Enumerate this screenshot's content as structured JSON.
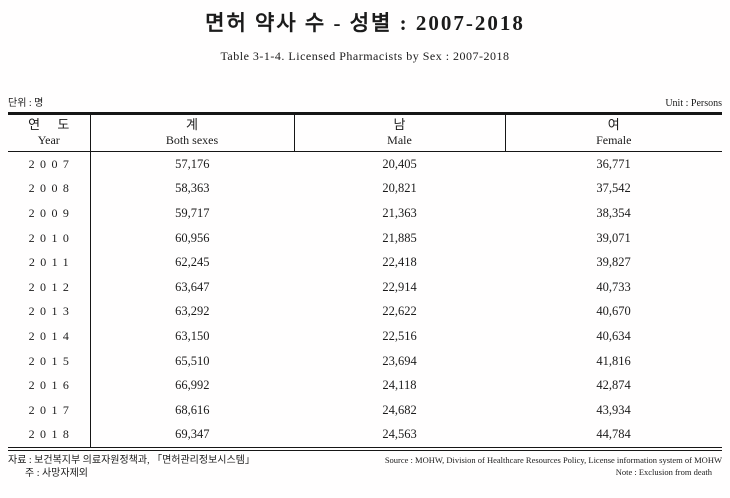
{
  "page": {
    "title_ko": "면허 약사 수 - 성별 : 2007-2018",
    "title_en": "Table 3-1-4. Licensed Pharmacists by Sex : 2007-2018",
    "unit_ko": "단위 : 명",
    "unit_en": "Unit : Persons"
  },
  "table": {
    "columns": [
      {
        "ko": "연 도",
        "en": "Year"
      },
      {
        "ko": "계",
        "en": "Both sexes"
      },
      {
        "ko": "남",
        "en": "Male"
      },
      {
        "ko": "여",
        "en": "Female"
      }
    ],
    "rows": [
      {
        "year": "2007",
        "total": "57,176",
        "male": "20,405",
        "female": "36,771"
      },
      {
        "year": "2008",
        "total": "58,363",
        "male": "20,821",
        "female": "37,542"
      },
      {
        "year": "2009",
        "total": "59,717",
        "male": "21,363",
        "female": "38,354"
      },
      {
        "year": "2010",
        "total": "60,956",
        "male": "21,885",
        "female": "39,071"
      },
      {
        "year": "2011",
        "total": "62,245",
        "male": "22,418",
        "female": "39,827"
      },
      {
        "year": "2012",
        "total": "63,647",
        "male": "22,914",
        "female": "40,733"
      },
      {
        "year": "2013",
        "total": "63,292",
        "male": "22,622",
        "female": "40,670"
      },
      {
        "year": "2014",
        "total": "63,150",
        "male": "22,516",
        "female": "40,634"
      },
      {
        "year": "2015",
        "total": "65,510",
        "male": "23,694",
        "female": "41,816"
      },
      {
        "year": "2016",
        "total": "66,992",
        "male": "24,118",
        "female": "42,874"
      },
      {
        "year": "2017",
        "total": "68,616",
        "male": "24,682",
        "female": "43,934"
      },
      {
        "year": "2018",
        "total": "69,347",
        "male": "24,563",
        "female": "44,784"
      }
    ]
  },
  "footer": {
    "source_ko": "자료 : 보건복지부 의료자원정책과, 「면허관리정보시스템」",
    "note_ko": "주 : 사망자제외",
    "source_en": "Source : MOHW, Division of Healthcare Resources Policy, License information system of MOHW",
    "note_en": "Note : Exclusion from death"
  },
  "chart_data": {
    "type": "table",
    "title": "면허 약사 수 - 성별 : 2007-2018",
    "subtitle": "Table 3-1-4. Licensed Pharmacists by Sex : 2007-2018",
    "unit": "Persons",
    "categories": [
      "2007",
      "2008",
      "2009",
      "2010",
      "2011",
      "2012",
      "2013",
      "2014",
      "2015",
      "2016",
      "2017",
      "2018"
    ],
    "series": [
      {
        "name": "Both sexes",
        "values": [
          57176,
          58363,
          59717,
          60956,
          62245,
          63647,
          63292,
          63150,
          65510,
          66992,
          68616,
          69347
        ]
      },
      {
        "name": "Male",
        "values": [
          20405,
          20821,
          21363,
          21885,
          22418,
          22914,
          22622,
          22516,
          23694,
          24118,
          24682,
          24563
        ]
      },
      {
        "name": "Female",
        "values": [
          36771,
          37542,
          38354,
          39071,
          39827,
          40733,
          40670,
          40634,
          41816,
          42874,
          43934,
          44784
        ]
      }
    ]
  }
}
